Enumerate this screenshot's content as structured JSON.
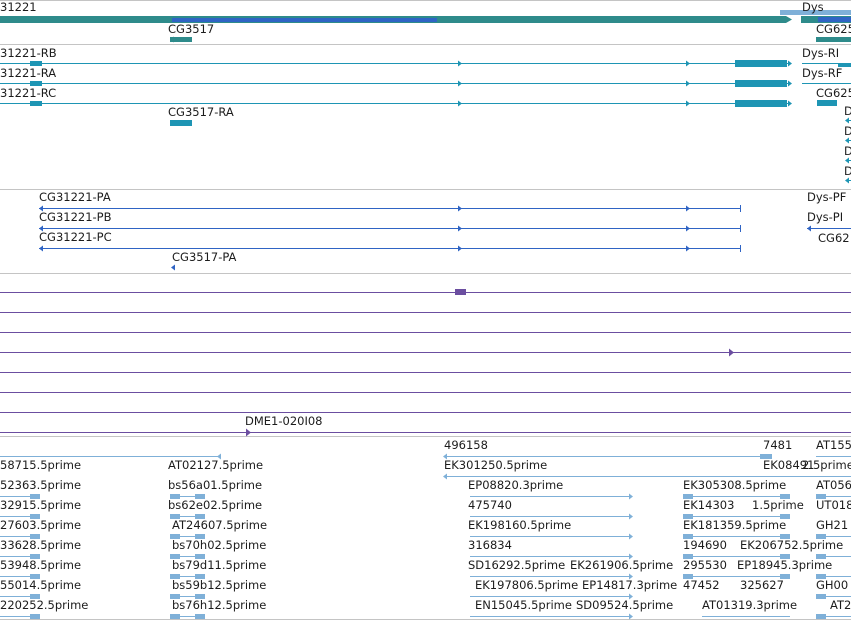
{
  "gene_track": {
    "color": "#2e8b8b",
    "features": [
      {
        "label": "31221"
      },
      {
        "label": "CG3517"
      },
      {
        "label": "Dys"
      },
      {
        "label": "CG625"
      }
    ]
  },
  "transcript_track": {
    "color": "#1e95b4",
    "features": [
      {
        "label": "31221-RB"
      },
      {
        "label": "31221-RA"
      },
      {
        "label": "31221-RC"
      },
      {
        "label": "CG3517-RA"
      },
      {
        "label": "Dys-RI"
      },
      {
        "label": "Dys-RF"
      },
      {
        "label": "CG625"
      },
      {
        "label": "D"
      },
      {
        "label": "D"
      },
      {
        "label": "D"
      },
      {
        "label": "D"
      }
    ]
  },
  "protein_track": {
    "color": "#2f64c4",
    "features": [
      {
        "label": "CG31221-PA"
      },
      {
        "label": "CG31221-PB"
      },
      {
        "label": "CG31221-PC"
      },
      {
        "label": "CG3517-PA"
      },
      {
        "label": "Dys-PF"
      },
      {
        "label": "Dys-PI"
      },
      {
        "label": "CG62"
      }
    ]
  },
  "clone_track": {
    "color": "#6b4ea0",
    "features": [
      {
        "label": "DME1-020I08"
      }
    ]
  },
  "est_track": {
    "color": "#7fb0d8",
    "features": [
      {
        "label": "58715.5prime"
      },
      {
        "label": "52363.5prime"
      },
      {
        "label": "32915.5prime"
      },
      {
        "label": "27603.5prime"
      },
      {
        "label": "33628.5prime"
      },
      {
        "label": "53948.5prime"
      },
      {
        "label": "55014.5prime"
      },
      {
        "label": "220252.5prime"
      },
      {
        "label": "AT02127.5prime"
      },
      {
        "label": "bs56a01.5prime"
      },
      {
        "label": "bs62e02.5prime"
      },
      {
        "label": "AT24607.5prime"
      },
      {
        "label": "bs70h02.5prime"
      },
      {
        "label": "bs79d11.5prime"
      },
      {
        "label": "bs59b12.5prime"
      },
      {
        "label": "bs76h12.5prime"
      },
      {
        "label": "496158"
      },
      {
        "label": "EK301250.5prime"
      },
      {
        "label": "EP08820.3prime"
      },
      {
        "label": "475740"
      },
      {
        "label": "EK198160.5prime"
      },
      {
        "label": "316834"
      },
      {
        "label": "SD16292.5prime"
      },
      {
        "label": "EK197806.5prime"
      },
      {
        "label": "EN15045.5prime"
      },
      {
        "label": "EK261906.5prime"
      },
      {
        "label": "EP14817.3prime"
      },
      {
        "label": "SD09524.5prime"
      },
      {
        "label": "7481"
      },
      {
        "label": "EK08491"
      },
      {
        "label": "2.5prime"
      },
      {
        "label": "EK305308.5prime"
      },
      {
        "label": "EK14303"
      },
      {
        "label": "1.5prime"
      },
      {
        "label": "EK181359.5prime"
      },
      {
        "label": "194690"
      },
      {
        "label": "EK206752.5prime"
      },
      {
        "label": "295530"
      },
      {
        "label": "EP18945.3prime"
      },
      {
        "label": "47452"
      },
      {
        "label": "325627"
      },
      {
        "label": "AT01319.3prime"
      },
      {
        "label": "AT155"
      },
      {
        "label": "AT056"
      },
      {
        "label": "UT018"
      },
      {
        "label": "GH21"
      },
      {
        "label": "GH00"
      },
      {
        "label": "AT2"
      }
    ]
  }
}
